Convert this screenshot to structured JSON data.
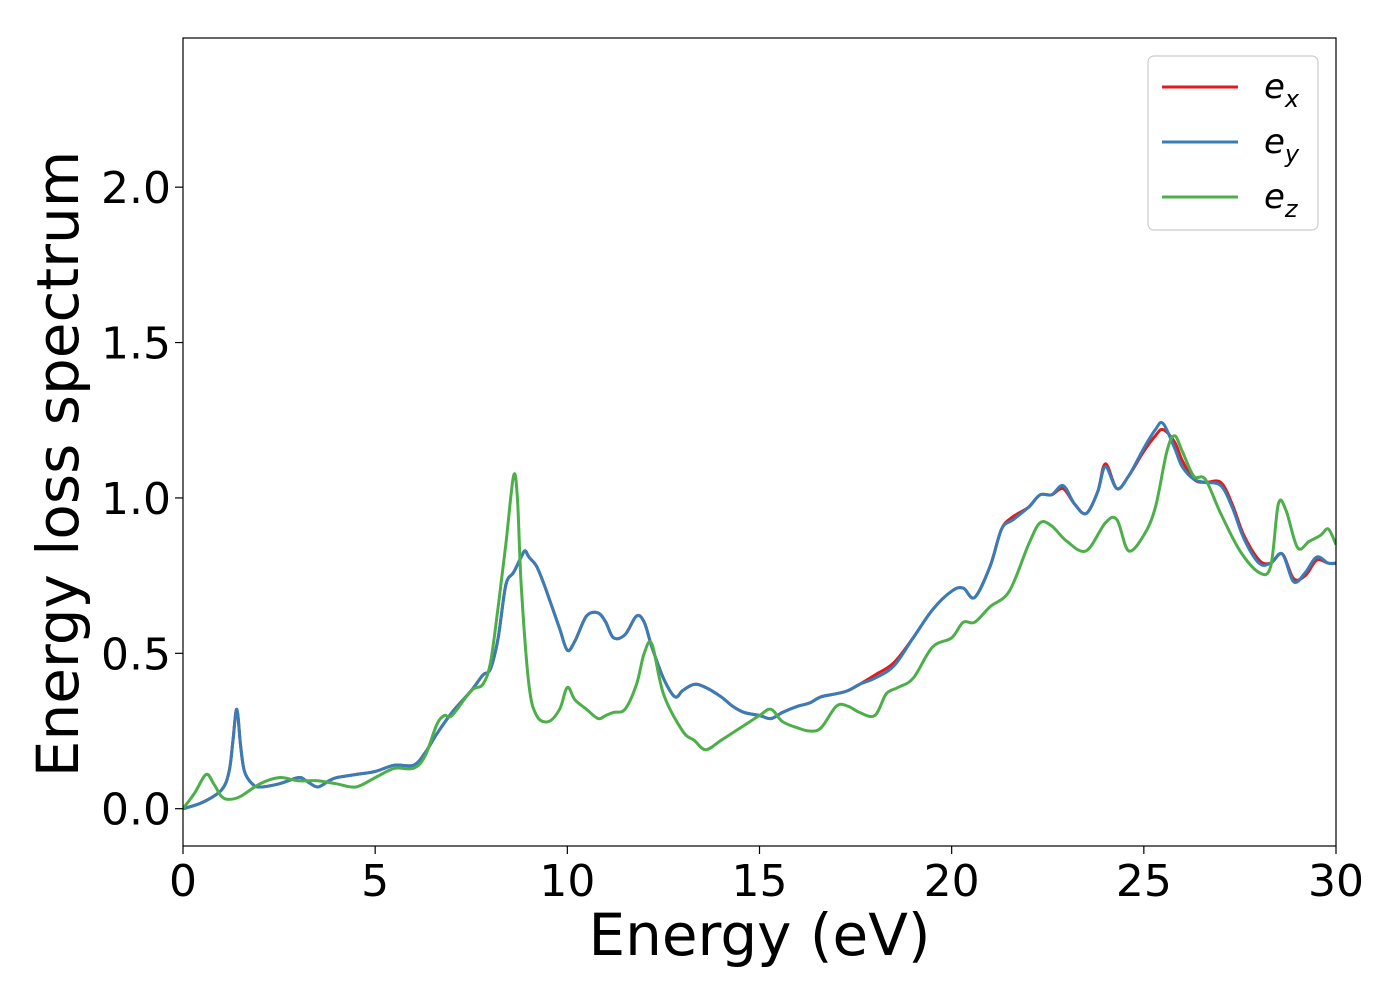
{
  "chart_data": {
    "type": "line",
    "title": "",
    "xlabel": "Energy (eV)",
    "ylabel": "Energy loss spectrum",
    "xlim": [
      0,
      30
    ],
    "ylim": [
      -0.12,
      2.48
    ],
    "xticks": [
      0,
      5,
      10,
      15,
      20,
      25,
      30
    ],
    "xtick_labels": [
      "0",
      "5",
      "10",
      "15",
      "20",
      "25",
      "30"
    ],
    "yticks": [
      0.0,
      0.5,
      1.0,
      1.5,
      2.0
    ],
    "ytick_labels": [
      "0.0",
      "0.5",
      "1.0",
      "1.5",
      "2.0"
    ],
    "grid": false,
    "legend_position": "top-right",
    "series": [
      {
        "name": "e_x",
        "legend_main": "e",
        "legend_sub": "x",
        "color": "#e41a1c",
        "x": [
          0,
          0.5,
          1.0,
          1.2,
          1.3,
          1.4,
          1.5,
          1.6,
          1.8,
          2.0,
          2.5,
          3.0,
          3.2,
          3.5,
          3.8,
          4.0,
          4.5,
          5.0,
          5.5,
          6.0,
          6.3,
          6.6,
          7.0,
          7.5,
          7.8,
          8.0,
          8.2,
          8.4,
          8.6,
          8.8,
          8.9,
          9.0,
          9.2,
          9.4,
          9.6,
          9.8,
          10.0,
          10.2,
          10.5,
          10.8,
          11.0,
          11.2,
          11.5,
          11.8,
          12.0,
          12.2,
          12.5,
          12.8,
          13.0,
          13.3,
          13.6,
          14.0,
          14.3,
          14.6,
          15.0,
          15.3,
          15.6,
          16.0,
          16.3,
          16.6,
          17.0,
          17.3,
          17.6,
          18.0,
          18.5,
          19.0,
          19.5,
          20.0,
          20.3,
          20.6,
          21.0,
          21.3,
          21.6,
          22.0,
          22.3,
          22.6,
          22.9,
          23.2,
          23.5,
          23.8,
          24.0,
          24.3,
          24.6,
          25.0,
          25.3,
          25.5,
          25.8,
          26.0,
          26.3,
          26.6,
          27.0,
          27.3,
          27.6,
          28.0,
          28.3,
          28.6,
          28.9,
          29.2,
          29.5,
          29.8,
          30.0
        ],
        "y": [
          0.0,
          0.02,
          0.06,
          0.12,
          0.22,
          0.32,
          0.2,
          0.12,
          0.08,
          0.07,
          0.08,
          0.1,
          0.09,
          0.07,
          0.09,
          0.1,
          0.11,
          0.12,
          0.14,
          0.14,
          0.18,
          0.24,
          0.31,
          0.38,
          0.43,
          0.45,
          0.55,
          0.72,
          0.76,
          0.81,
          0.83,
          0.81,
          0.78,
          0.72,
          0.65,
          0.58,
          0.51,
          0.54,
          0.62,
          0.63,
          0.6,
          0.55,
          0.56,
          0.62,
          0.6,
          0.52,
          0.42,
          0.36,
          0.38,
          0.4,
          0.39,
          0.36,
          0.33,
          0.31,
          0.3,
          0.29,
          0.31,
          0.33,
          0.34,
          0.36,
          0.37,
          0.38,
          0.4,
          0.43,
          0.47,
          0.55,
          0.64,
          0.7,
          0.71,
          0.68,
          0.78,
          0.9,
          0.94,
          0.97,
          1.01,
          1.01,
          1.03,
          0.98,
          0.95,
          1.02,
          1.11,
          1.03,
          1.07,
          1.15,
          1.2,
          1.22,
          1.18,
          1.12,
          1.06,
          1.05,
          1.05,
          0.98,
          0.88,
          0.8,
          0.79,
          0.82,
          0.74,
          0.75,
          0.8,
          0.79,
          0.79
        ]
      },
      {
        "name": "e_y",
        "legend_main": "e",
        "legend_sub": "y",
        "color": "#377eb8",
        "x": [
          0,
          0.5,
          1.0,
          1.2,
          1.3,
          1.4,
          1.5,
          1.6,
          1.8,
          2.0,
          2.5,
          3.0,
          3.2,
          3.5,
          3.8,
          4.0,
          4.5,
          5.0,
          5.5,
          6.0,
          6.3,
          6.6,
          7.0,
          7.5,
          7.8,
          8.0,
          8.2,
          8.4,
          8.6,
          8.8,
          8.9,
          9.0,
          9.2,
          9.4,
          9.6,
          9.8,
          10.0,
          10.2,
          10.5,
          10.8,
          11.0,
          11.2,
          11.5,
          11.8,
          12.0,
          12.2,
          12.5,
          12.8,
          13.0,
          13.3,
          13.6,
          14.0,
          14.3,
          14.6,
          15.0,
          15.3,
          15.6,
          16.0,
          16.3,
          16.6,
          17.0,
          17.3,
          17.6,
          18.0,
          18.5,
          19.0,
          19.5,
          20.0,
          20.3,
          20.6,
          21.0,
          21.3,
          21.6,
          22.0,
          22.3,
          22.6,
          22.9,
          23.2,
          23.5,
          23.8,
          24.0,
          24.3,
          24.6,
          25.0,
          25.3,
          25.5,
          25.8,
          26.0,
          26.3,
          26.6,
          27.0,
          27.3,
          27.6,
          28.0,
          28.3,
          28.6,
          28.9,
          29.2,
          29.5,
          29.8,
          30.0
        ],
        "y": [
          0.0,
          0.02,
          0.06,
          0.12,
          0.22,
          0.32,
          0.2,
          0.12,
          0.08,
          0.07,
          0.08,
          0.1,
          0.09,
          0.07,
          0.09,
          0.1,
          0.11,
          0.12,
          0.14,
          0.14,
          0.18,
          0.24,
          0.31,
          0.38,
          0.43,
          0.45,
          0.55,
          0.72,
          0.76,
          0.81,
          0.83,
          0.81,
          0.78,
          0.72,
          0.65,
          0.58,
          0.51,
          0.54,
          0.62,
          0.63,
          0.6,
          0.55,
          0.56,
          0.62,
          0.6,
          0.52,
          0.42,
          0.36,
          0.38,
          0.4,
          0.39,
          0.36,
          0.33,
          0.31,
          0.3,
          0.29,
          0.31,
          0.33,
          0.34,
          0.36,
          0.37,
          0.38,
          0.4,
          0.42,
          0.46,
          0.55,
          0.64,
          0.7,
          0.71,
          0.68,
          0.78,
          0.9,
          0.93,
          0.97,
          1.01,
          1.01,
          1.04,
          0.98,
          0.95,
          1.02,
          1.1,
          1.03,
          1.07,
          1.16,
          1.22,
          1.24,
          1.16,
          1.1,
          1.06,
          1.05,
          1.04,
          0.97,
          0.87,
          0.79,
          0.79,
          0.82,
          0.73,
          0.76,
          0.81,
          0.79,
          0.79
        ]
      },
      {
        "name": "e_z",
        "legend_main": "e",
        "legend_sub": "z",
        "color": "#4daf4a",
        "x": [
          0,
          0.3,
          0.6,
          0.8,
          1.0,
          1.2,
          1.5,
          2.0,
          2.5,
          3.0,
          3.5,
          4.0,
          4.5,
          5.0,
          5.5,
          6.0,
          6.3,
          6.6,
          6.8,
          7.0,
          7.5,
          7.8,
          8.0,
          8.2,
          8.4,
          8.6,
          8.7,
          8.8,
          9.0,
          9.2,
          9.5,
          9.8,
          10.0,
          10.2,
          10.5,
          10.8,
          11.0,
          11.2,
          11.5,
          11.8,
          12.0,
          12.2,
          12.5,
          13.0,
          13.3,
          13.6,
          14.0,
          14.5,
          15.0,
          15.3,
          15.6,
          16.0,
          16.3,
          16.6,
          17.0,
          17.3,
          17.6,
          18.0,
          18.3,
          18.6,
          19.0,
          19.5,
          20.0,
          20.3,
          20.6,
          21.0,
          21.5,
          22.0,
          22.3,
          22.6,
          23.0,
          23.5,
          24.0,
          24.3,
          24.6,
          25.0,
          25.3,
          25.6,
          25.8,
          26.0,
          26.3,
          26.6,
          27.0,
          27.5,
          28.0,
          28.3,
          28.5,
          28.7,
          29.0,
          29.3,
          29.6,
          29.8,
          30.0
        ],
        "y": [
          0.0,
          0.05,
          0.11,
          0.08,
          0.04,
          0.03,
          0.04,
          0.08,
          0.1,
          0.09,
          0.09,
          0.08,
          0.07,
          0.1,
          0.13,
          0.13,
          0.17,
          0.27,
          0.3,
          0.3,
          0.38,
          0.4,
          0.47,
          0.65,
          0.85,
          1.07,
          1.0,
          0.72,
          0.4,
          0.3,
          0.28,
          0.32,
          0.39,
          0.35,
          0.32,
          0.29,
          0.3,
          0.31,
          0.32,
          0.4,
          0.5,
          0.53,
          0.37,
          0.25,
          0.22,
          0.19,
          0.22,
          0.26,
          0.3,
          0.32,
          0.28,
          0.26,
          0.25,
          0.26,
          0.33,
          0.33,
          0.31,
          0.3,
          0.37,
          0.39,
          0.42,
          0.52,
          0.55,
          0.6,
          0.6,
          0.65,
          0.7,
          0.85,
          0.92,
          0.91,
          0.86,
          0.83,
          0.92,
          0.93,
          0.83,
          0.88,
          0.97,
          1.15,
          1.2,
          1.15,
          1.07,
          1.06,
          0.95,
          0.83,
          0.76,
          0.78,
          0.98,
          0.96,
          0.84,
          0.86,
          0.88,
          0.9,
          0.85
        ]
      }
    ]
  }
}
